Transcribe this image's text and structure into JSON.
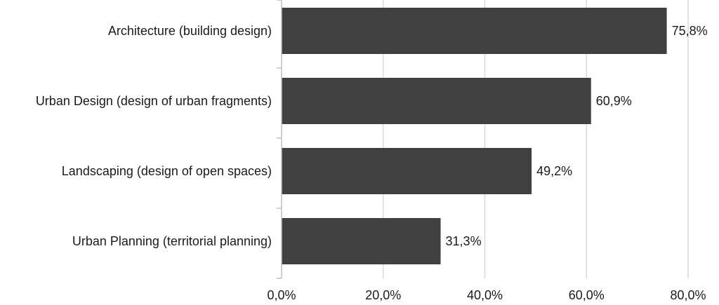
{
  "chart_data": {
    "type": "bar",
    "orientation": "horizontal",
    "categories": [
      "Architecture (building design)",
      "Urban Design (design of urban fragments)",
      "Landscaping (design of open spaces)",
      "Urban Planning (territorial planning)"
    ],
    "values": [
      75.8,
      60.9,
      49.2,
      31.3
    ],
    "value_labels": [
      "75,8%",
      "60,9%",
      "49,2%",
      "31,3%"
    ],
    "xlim": [
      0,
      80
    ],
    "ticks": [
      0,
      20,
      40,
      60,
      80
    ],
    "tick_labels": [
      "0,0%",
      "20,0%",
      "40,0%",
      "60,0%",
      "80,0%"
    ],
    "title": "",
    "xlabel": "",
    "ylabel": "",
    "grid": "vertical",
    "legend": "none",
    "bar_color": "#404040",
    "grid_color": "#d9d9d9",
    "axis_color": "#bfbfbf",
    "text_color": "#1a1a1a"
  }
}
